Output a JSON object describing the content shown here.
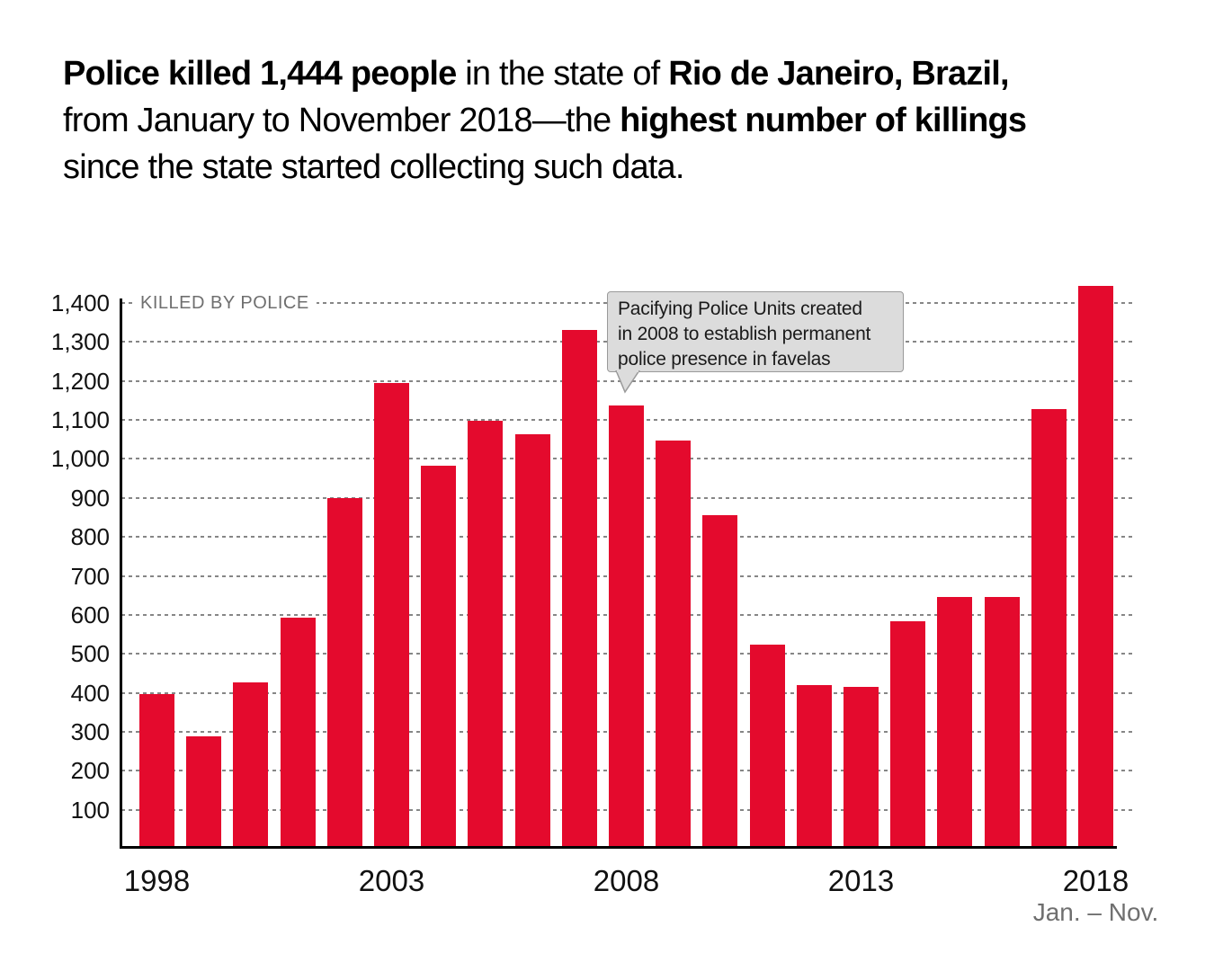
{
  "headline": {
    "lines": [
      {
        "segments": [
          {
            "text": "Police killed 1,444 people",
            "bold": true
          },
          {
            "text": " in the state of ",
            "bold": false
          },
          {
            "text": "Rio de Janeiro, Brazil,",
            "bold": true
          }
        ]
      },
      {
        "segments": [
          {
            "text": "from January to November 2018—the ",
            "bold": false
          },
          {
            "text": "highest number of killings",
            "bold": true
          }
        ]
      },
      {
        "segments": [
          {
            "text": "since the state started collecting such data.",
            "bold": false
          }
        ]
      }
    ]
  },
  "chart_data": {
    "type": "bar",
    "title": "KILLED BY POLICE",
    "series_label": "KILLED BY POLICE",
    "categories": [
      "1998",
      "1999",
      "2000",
      "2001",
      "2002",
      "2003",
      "2004",
      "2005",
      "2006",
      "2007",
      "2008",
      "2009",
      "2010",
      "2011",
      "2012",
      "2013",
      "2014",
      "2015",
      "2016",
      "2017",
      "2018"
    ],
    "values": [
      397,
      289,
      427,
      592,
      900,
      1195,
      983,
      1098,
      1063,
      1330,
      1137,
      1048,
      855,
      523,
      419,
      416,
      584,
      645,
      645,
      1127,
      1444
    ],
    "xlabel": "",
    "ylabel": "",
    "ylim": [
      0,
      1400
    ],
    "ytick_step": 100,
    "y_tick_labels": [
      "100",
      "200",
      "300",
      "400",
      "500",
      "600",
      "700",
      "800",
      "900",
      "1,000",
      "1,100",
      "1,200",
      "1,300",
      "1,400"
    ],
    "x_ticks": [
      {
        "label": "1998",
        "bar_index": 0
      },
      {
        "label": "2003",
        "bar_index": 5
      },
      {
        "label": "2008",
        "bar_index": 10
      },
      {
        "label": "2013",
        "bar_index": 15
      },
      {
        "label": "2018",
        "bar_index": 20
      }
    ],
    "x_note": {
      "text": "Jan. – Nov.",
      "bar_index": 20
    },
    "grid": "horizontal-dotted",
    "legend_position": "none",
    "bar_color": "#e40a2d",
    "annotation": {
      "lines": [
        "Pacifying Police Units created",
        "in 2008 to establish permanent",
        "police presence in favelas"
      ],
      "points_to_category": "2008"
    }
  }
}
